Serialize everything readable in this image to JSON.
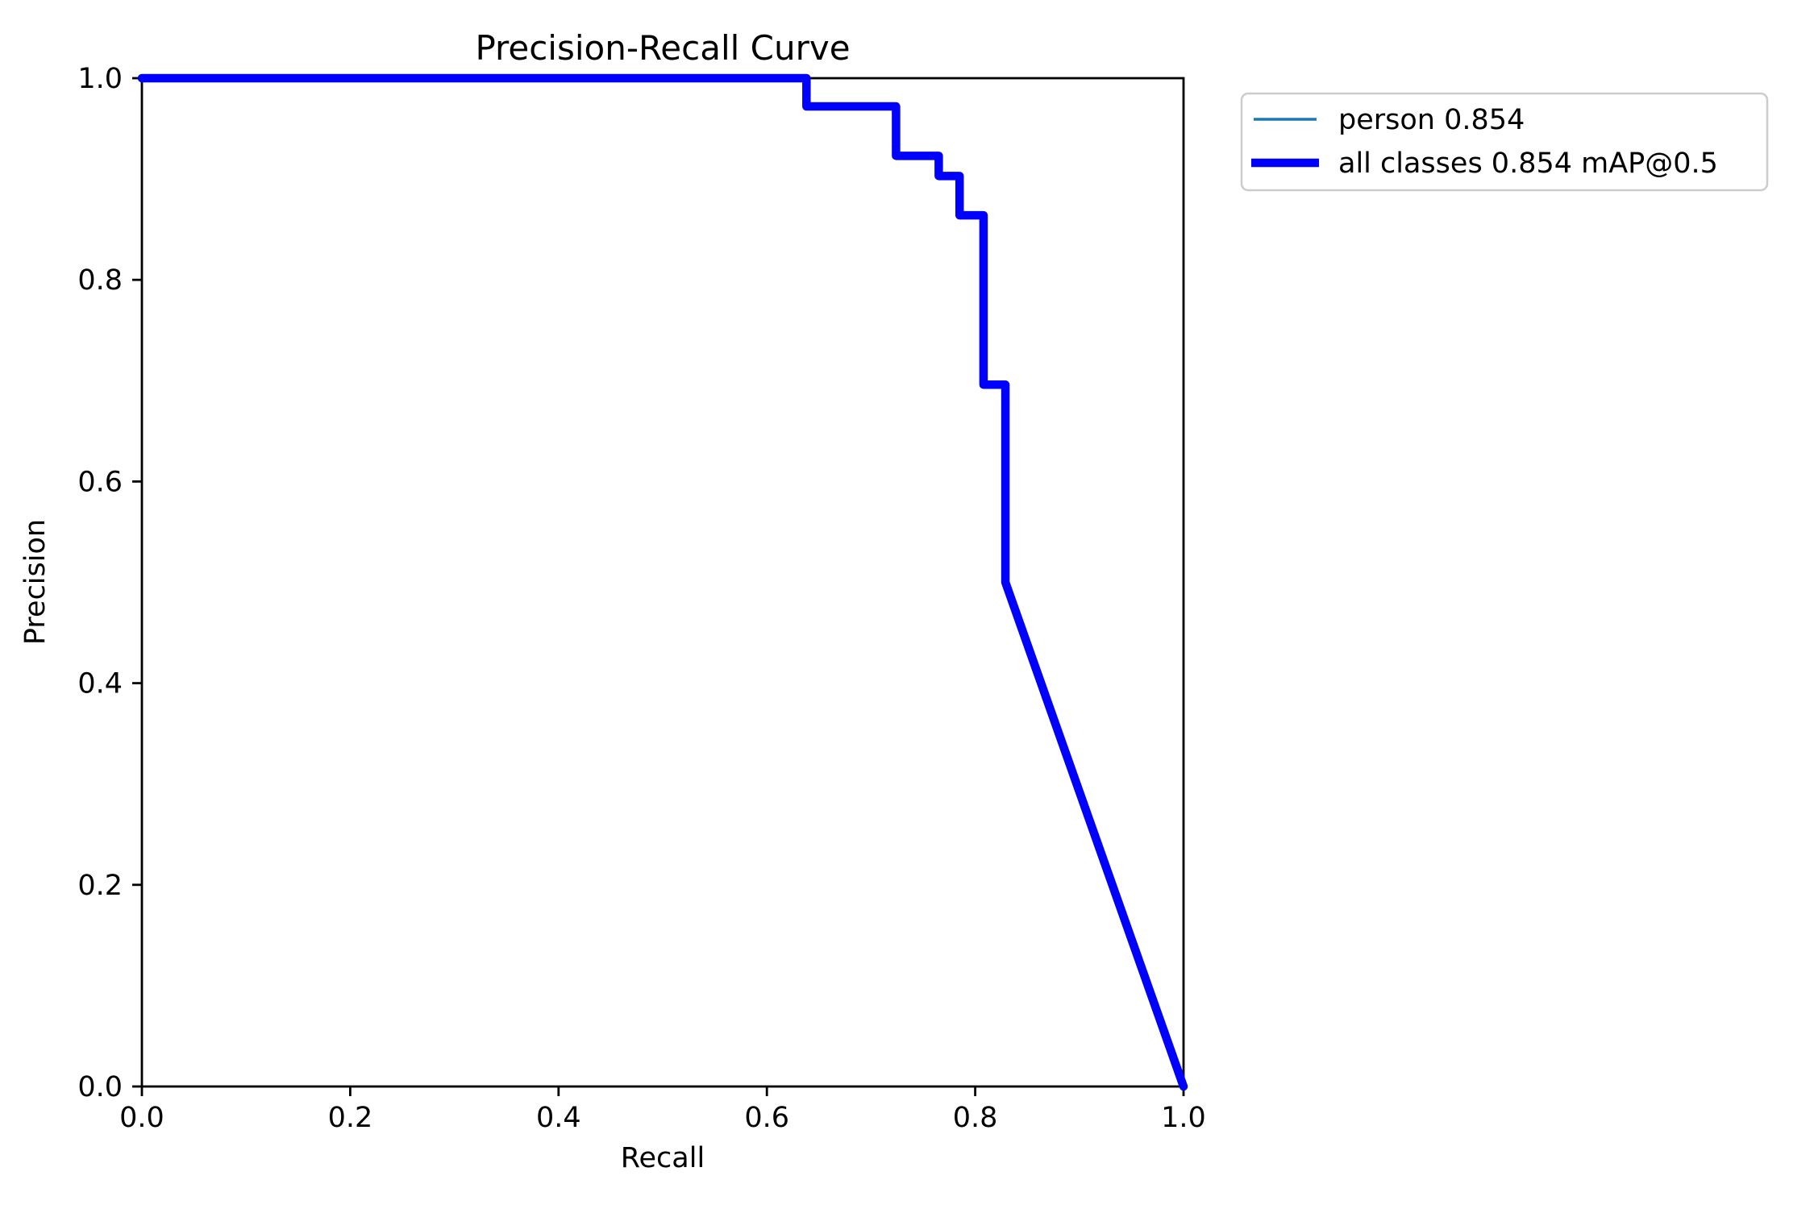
{
  "chart_data": {
    "type": "line",
    "title": "Precision-Recall Curve",
    "xlabel": "Recall",
    "ylabel": "Precision",
    "xlim": [
      0.0,
      1.0
    ],
    "ylim": [
      0.0,
      1.0
    ],
    "x_ticks": [
      "0.0",
      "0.2",
      "0.4",
      "0.6",
      "0.8",
      "1.0"
    ],
    "y_ticks": [
      "0.0",
      "0.2",
      "0.4",
      "0.6",
      "0.8",
      "1.0"
    ],
    "grid": false,
    "legend_position": "upper-right-outside",
    "series": [
      {
        "name": "person 0.854",
        "color": "#1f77b4",
        "style": "thin",
        "points": [
          [
            0.0,
            1.0
          ],
          [
            0.638,
            1.0
          ],
          [
            0.638,
            0.972
          ],
          [
            0.724,
            0.972
          ],
          [
            0.724,
            0.923
          ],
          [
            0.765,
            0.923
          ],
          [
            0.765,
            0.903
          ],
          [
            0.785,
            0.903
          ],
          [
            0.785,
            0.864
          ],
          [
            0.808,
            0.864
          ],
          [
            0.808,
            0.696
          ],
          [
            0.829,
            0.696
          ],
          [
            0.829,
            0.5
          ],
          [
            1.0,
            0.0
          ]
        ]
      },
      {
        "name": "all classes 0.854 mAP@0.5",
        "color": "#0000ff",
        "style": "thick",
        "points": [
          [
            0.0,
            1.0
          ],
          [
            0.638,
            1.0
          ],
          [
            0.638,
            0.972
          ],
          [
            0.724,
            0.972
          ],
          [
            0.724,
            0.923
          ],
          [
            0.765,
            0.923
          ],
          [
            0.765,
            0.903
          ],
          [
            0.785,
            0.903
          ],
          [
            0.785,
            0.864
          ],
          [
            0.808,
            0.864
          ],
          [
            0.808,
            0.696
          ],
          [
            0.829,
            0.696
          ],
          [
            0.829,
            0.5
          ],
          [
            1.0,
            0.0
          ]
        ]
      }
    ]
  }
}
